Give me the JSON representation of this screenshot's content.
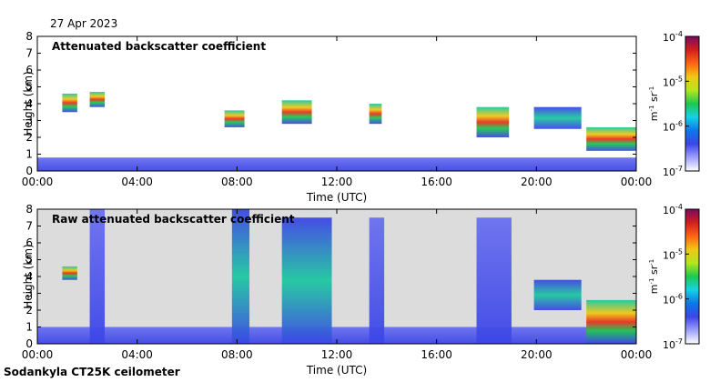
{
  "date": "27 Apr 2023",
  "footer": "Sodankyla CT25K ceilometer",
  "colorbar": {
    "tick_labels": [
      "10",
      "10",
      "10",
      "10"
    ],
    "tick_exponents": [
      "-4",
      "-5",
      "-6",
      "-7"
    ],
    "unit_base": "m",
    "unit_exp1": "-1",
    "unit_mid": " sr",
    "unit_exp2": "-1",
    "range": [
      1e-07,
      0.0001
    ],
    "scale": "log"
  },
  "colors": {
    "no_signal": "#d8d8d8",
    "low": "#3c46e6",
    "mid": "#1ec8a0",
    "high": "#e6321e",
    "colormap": [
      "#ffffff",
      "#9ea0ff",
      "#3c46e6",
      "#0a78e6",
      "#14d2e6",
      "#1ec850",
      "#b4e61e",
      "#f0c814",
      "#ff6414",
      "#d21e1e",
      "#7a0a60"
    ]
  },
  "chart_data": [
    {
      "type": "heatmap",
      "title": "Attenuated backscatter coefficient",
      "xlabel": "Time (UTC)",
      "ylabel": "Height (km)",
      "xticks": [
        "00:00",
        "04:00",
        "08:00",
        "12:00",
        "16:00",
        "20:00",
        "00:00"
      ],
      "yticks": [
        "0",
        "1",
        "2",
        "3",
        "4",
        "5",
        "6",
        "7",
        "8"
      ],
      "xlim": [
        0,
        24
      ],
      "ylim": [
        0,
        8
      ],
      "features": [
        {
          "t0": 0.0,
          "t1": 24.0,
          "h0": 0.0,
          "h1": 0.8,
          "level": "low"
        },
        {
          "t0": 1.0,
          "t1": 1.6,
          "h0": 3.5,
          "h1": 4.6,
          "level": "high"
        },
        {
          "t0": 2.1,
          "t1": 2.7,
          "h0": 3.8,
          "h1": 4.7,
          "level": "high"
        },
        {
          "t0": 7.5,
          "t1": 8.3,
          "h0": 2.6,
          "h1": 3.6,
          "level": "high"
        },
        {
          "t0": 9.8,
          "t1": 11.0,
          "h0": 2.8,
          "h1": 4.2,
          "level": "high"
        },
        {
          "t0": 13.3,
          "t1": 13.8,
          "h0": 2.8,
          "h1": 4.0,
          "level": "high"
        },
        {
          "t0": 17.6,
          "t1": 18.9,
          "h0": 2.0,
          "h1": 3.8,
          "level": "high"
        },
        {
          "t0": 19.9,
          "t1": 21.8,
          "h0": 2.5,
          "h1": 3.8,
          "level": "mid"
        },
        {
          "t0": 22.0,
          "t1": 24.0,
          "h0": 1.2,
          "h1": 2.6,
          "level": "high"
        }
      ]
    },
    {
      "type": "heatmap",
      "title": "Raw attenuated backscatter coefficient",
      "xlabel": "Time (UTC)",
      "ylabel": "Height (km)",
      "xticks": [
        "00:00",
        "04:00",
        "08:00",
        "12:00",
        "16:00",
        "20:00",
        "00:00"
      ],
      "yticks": [
        "0",
        "1",
        "2",
        "3",
        "4",
        "5",
        "6",
        "7",
        "8"
      ],
      "xlim": [
        0,
        24
      ],
      "ylim": [
        0,
        8
      ],
      "features": [
        {
          "t0": 0.0,
          "t1": 24.0,
          "h0": 0.0,
          "h1": 8.0,
          "level": "no_signal"
        },
        {
          "t0": 0.0,
          "t1": 24.0,
          "h0": 0.0,
          "h1": 1.0,
          "level": "low"
        },
        {
          "t0": 1.0,
          "t1": 1.6,
          "h0": 3.8,
          "h1": 4.6,
          "level": "high"
        },
        {
          "t0": 2.1,
          "t1": 2.7,
          "h0": 0.0,
          "h1": 8.0,
          "level": "low"
        },
        {
          "t0": 7.8,
          "t1": 8.5,
          "h0": 0.0,
          "h1": 8.0,
          "level": "mid"
        },
        {
          "t0": 9.8,
          "t1": 11.8,
          "h0": 0.0,
          "h1": 7.5,
          "level": "mid"
        },
        {
          "t0": 13.3,
          "t1": 13.9,
          "h0": 0.0,
          "h1": 7.5,
          "level": "low"
        },
        {
          "t0": 17.6,
          "t1": 19.0,
          "h0": 0.0,
          "h1": 7.5,
          "level": "low"
        },
        {
          "t0": 19.9,
          "t1": 21.8,
          "h0": 2.0,
          "h1": 3.8,
          "level": "mid"
        },
        {
          "t0": 22.0,
          "t1": 24.0,
          "h0": 0.0,
          "h1": 2.6,
          "level": "high"
        }
      ]
    }
  ]
}
